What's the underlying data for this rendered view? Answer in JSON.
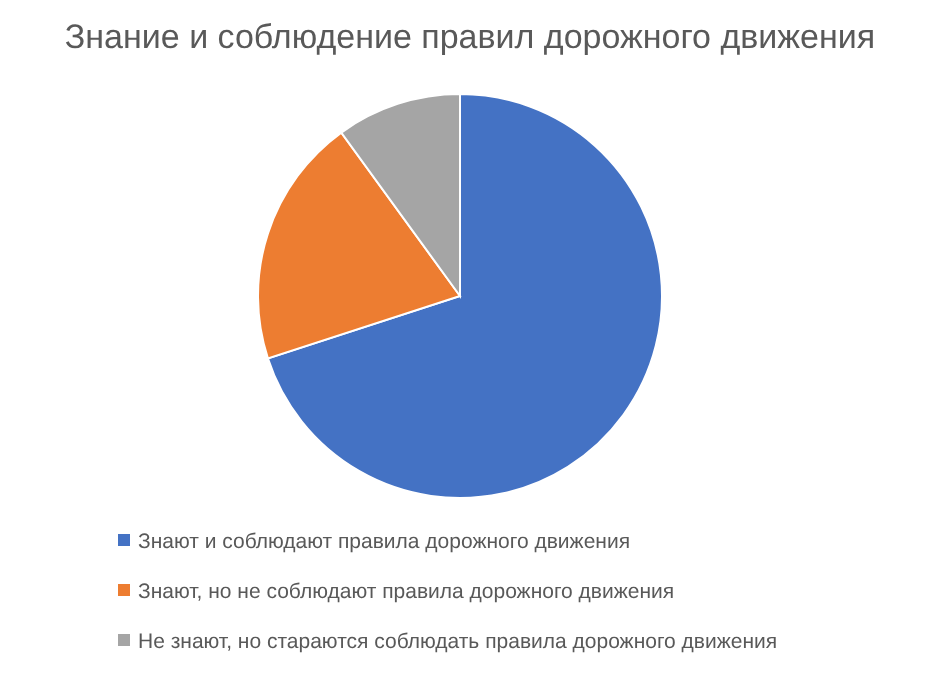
{
  "chart_data": {
    "type": "pie",
    "title": "Знание и соблюдение правил дорожного движения",
    "categories": [
      "Знают и соблюдают правила дорожного движения",
      "Знают, но не соблюдают правила дорожного движения",
      "Не знают, но стараются соблюдать правила дорожного движения"
    ],
    "values": [
      70,
      20,
      10
    ],
    "colors": [
      "#4472c4",
      "#ed7d31",
      "#a5a5a5"
    ],
    "legend": "bottom"
  }
}
